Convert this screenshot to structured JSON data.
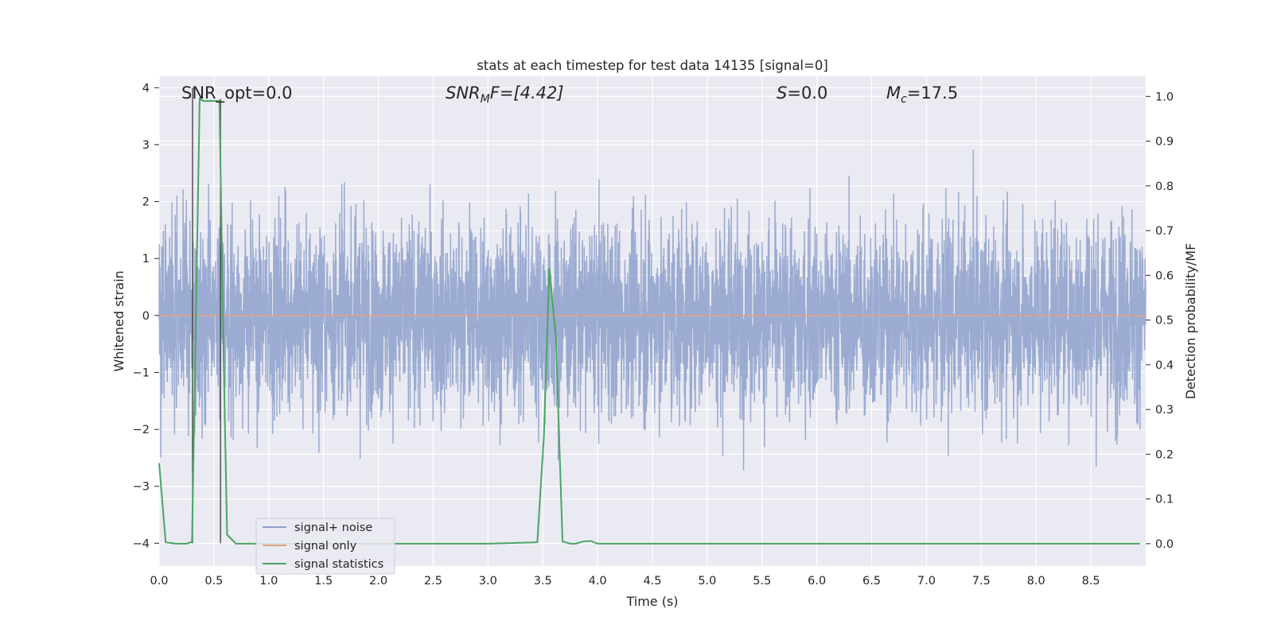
{
  "chart_data": {
    "type": "line",
    "title": "stats at each timestep for test data 14135 [signal=0]",
    "xlabel": "Time (s)",
    "ylabel_left": "Whitened strain",
    "ylabel_right": "Detection probability/MF",
    "xlim": [
      0.0,
      9.0
    ],
    "ylim_left": [
      -4.4,
      4.2
    ],
    "ylim_right": [
      -0.05,
      1.045
    ],
    "x_ticks": [
      0.0,
      0.5,
      1.0,
      1.5,
      2.0,
      2.5,
      3.0,
      3.5,
      4.0,
      4.5,
      5.0,
      5.5,
      6.0,
      6.5,
      7.0,
      7.5,
      8.0,
      8.5
    ],
    "x_tick_labels": [
      "0.0",
      "0.5",
      "1.0",
      "1.5",
      "2.0",
      "2.5",
      "3.0",
      "3.5",
      "4.0",
      "4.5",
      "5.0",
      "5.5",
      "6.0",
      "6.5",
      "7.0",
      "7.5",
      "8.0",
      "8.5"
    ],
    "y_left_ticks": [
      4,
      3,
      2,
      1,
      0,
      -1,
      -2,
      -3,
      -4
    ],
    "y_left_tick_labels": [
      "4",
      "3",
      "2",
      "1",
      "0",
      "−1",
      "−2",
      "−3",
      "−4"
    ],
    "y_right_ticks": [
      1.0,
      0.9,
      0.8,
      0.7,
      0.6,
      0.5,
      0.4,
      0.3,
      0.2,
      0.1,
      0.0
    ],
    "y_right_tick_labels": [
      "1.0",
      "0.9",
      "0.8",
      "0.7",
      "0.6",
      "0.5",
      "0.4",
      "0.3",
      "0.2",
      "0.1",
      "0.0"
    ],
    "grid": true,
    "legend_position": "lower-left",
    "annotations": {
      "snr_opt": "SNR_opt=0.0",
      "snr_mf_var": "SNR",
      "snr_mf_sub": "M",
      "snr_mf_rest": "F=[4.42]",
      "s_var": "S",
      "s_rest": "=0.0",
      "mc_var": "M",
      "mc_sub": "c",
      "mc_rest": "=17.5"
    },
    "series": [
      {
        "name": "signal+ noise",
        "axis": "left",
        "color": "#8da0cb",
        "description_noise_std": 0.85,
        "samples": 4608,
        "x_end": 9.0
      },
      {
        "name": "signal only",
        "axis": "left",
        "color": "#e5a37f",
        "x": [
          0.0,
          9.0
        ],
        "y": [
          0.0,
          0.0
        ]
      },
      {
        "name": "signal statistics",
        "axis": "right",
        "color": "#4aa564",
        "x": [
          0.0,
          0.06,
          0.15,
          0.2,
          0.25,
          0.3,
          0.37,
          0.4,
          0.5,
          0.55,
          0.59,
          0.62,
          0.7,
          0.8,
          1.0,
          2.0,
          3.0,
          3.45,
          3.51,
          3.56,
          3.62,
          3.68,
          3.75,
          3.8,
          3.87,
          3.94,
          4.0,
          5.0,
          6.0,
          7.0,
          8.0,
          8.95
        ],
        "y": [
          0.18,
          0.003,
          0.0,
          0.0,
          0.0,
          0.004,
          0.995,
          0.99,
          0.99,
          0.99,
          0.4,
          0.02,
          0.0,
          0.0,
          0.0,
          0.0,
          0.0,
          0.003,
          0.24,
          0.615,
          0.46,
          0.005,
          0.0,
          0.0,
          0.005,
          0.006,
          0.0,
          0.0,
          0.0,
          0.0,
          0.0,
          0.0
        ]
      }
    ],
    "markers": [
      {
        "x": 0.305,
        "y_left": [
          -4.0,
          4.0
        ],
        "color": "#3a3a3a"
      },
      {
        "x": 0.56,
        "y_left": [
          -4.0,
          3.8
        ],
        "color": "#3a3a3a"
      }
    ]
  }
}
